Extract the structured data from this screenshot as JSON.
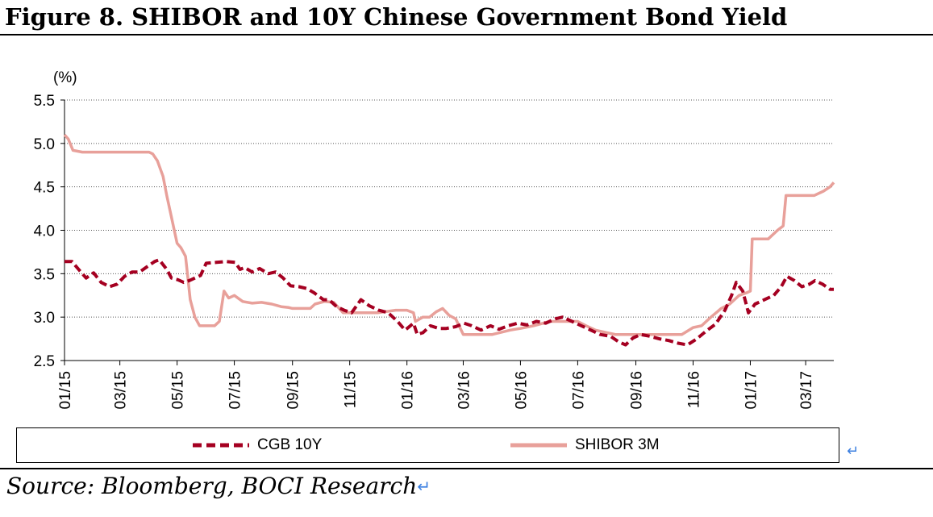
{
  "figure": {
    "title": "Figure 8. SHIBOR and 10Y Chinese Government Bond Yield",
    "source": "Source: Bloomberg, BOCI Research"
  },
  "chart_data": {
    "type": "line",
    "title": "Figure 8. SHIBOR and 10Y Chinese Government Bond Yield",
    "ylabel": "(%)",
    "xlabel": "",
    "ylim": [
      2.5,
      5.5
    ],
    "yticks": [
      2.5,
      3.0,
      3.5,
      4.0,
      4.5,
      5.0,
      5.5
    ],
    "ytick_labels": [
      "2.5",
      "3.0",
      "3.5",
      "4.0",
      "4.5",
      "5.0",
      "5.5"
    ],
    "xlim": [
      "2015-01-01",
      "2017-03-31"
    ],
    "xticks": [
      "2015-01-01",
      "2015-03-01",
      "2015-05-01",
      "2015-07-01",
      "2015-09-01",
      "2015-11-01",
      "2016-01-01",
      "2016-03-01",
      "2016-05-01",
      "2016-07-01",
      "2016-09-01",
      "2016-11-01",
      "2017-01-01",
      "2017-03-01"
    ],
    "xtick_labels": [
      "01/15",
      "03/15",
      "05/15",
      "07/15",
      "09/15",
      "11/15",
      "01/16",
      "03/16",
      "05/16",
      "07/16",
      "09/16",
      "11/16",
      "01/17",
      "03/17"
    ],
    "grid": "horizontal dotted",
    "legend": "bottom",
    "series": [
      {
        "name": "CGB 10Y",
        "style": "dashed",
        "color": "#A50021",
        "points": [
          [
            "2015-01-01",
            3.64
          ],
          [
            "2015-01-09",
            3.64
          ],
          [
            "2015-01-16",
            3.55
          ],
          [
            "2015-01-24",
            3.45
          ],
          [
            "2015-02-01",
            3.51
          ],
          [
            "2015-02-09",
            3.4
          ],
          [
            "2015-02-18",
            3.35
          ],
          [
            "2015-02-26",
            3.38
          ],
          [
            "2015-03-06",
            3.47
          ],
          [
            "2015-03-14",
            3.52
          ],
          [
            "2015-03-22",
            3.52
          ],
          [
            "2015-03-30",
            3.58
          ],
          [
            "2015-04-07",
            3.64
          ],
          [
            "2015-04-12",
            3.66
          ],
          [
            "2015-04-20",
            3.55
          ],
          [
            "2015-04-25",
            3.45
          ],
          [
            "2015-05-02",
            3.43
          ],
          [
            "2015-05-08",
            3.4
          ],
          [
            "2015-05-14",
            3.42
          ],
          [
            "2015-05-20",
            3.45
          ],
          [
            "2015-05-26",
            3.48
          ],
          [
            "2015-06-01",
            3.62
          ],
          [
            "2015-06-12",
            3.63
          ],
          [
            "2015-06-22",
            3.64
          ],
          [
            "2015-07-02",
            3.63
          ],
          [
            "2015-07-07",
            3.55
          ],
          [
            "2015-07-12",
            3.57
          ],
          [
            "2015-07-20",
            3.52
          ],
          [
            "2015-07-28",
            3.56
          ],
          [
            "2015-08-06",
            3.5
          ],
          [
            "2015-08-14",
            3.52
          ],
          [
            "2015-08-22",
            3.45
          ],
          [
            "2015-08-30",
            3.36
          ],
          [
            "2015-09-08",
            3.35
          ],
          [
            "2015-09-16",
            3.33
          ],
          [
            "2015-09-24",
            3.28
          ],
          [
            "2015-10-04",
            3.2
          ],
          [
            "2015-10-10",
            3.2
          ],
          [
            "2015-10-18",
            3.12
          ],
          [
            "2015-10-26",
            3.08
          ],
          [
            "2015-11-03",
            3.05
          ],
          [
            "2015-11-13",
            3.2
          ],
          [
            "2015-11-22",
            3.13
          ],
          [
            "2015-12-02",
            3.08
          ],
          [
            "2015-12-12",
            3.05
          ],
          [
            "2015-12-22",
            2.95
          ],
          [
            "2015-12-30",
            2.85
          ],
          [
            "2016-01-08",
            2.93
          ],
          [
            "2016-01-12",
            2.8
          ],
          [
            "2016-01-18",
            2.82
          ],
          [
            "2016-01-26",
            2.9
          ],
          [
            "2016-02-04",
            2.87
          ],
          [
            "2016-02-12",
            2.87
          ],
          [
            "2016-02-22",
            2.89
          ],
          [
            "2016-03-02",
            2.93
          ],
          [
            "2016-03-10",
            2.9
          ],
          [
            "2016-03-20",
            2.85
          ],
          [
            "2016-03-30",
            2.9
          ],
          [
            "2016-04-08",
            2.86
          ],
          [
            "2016-04-18",
            2.9
          ],
          [
            "2016-04-28",
            2.93
          ],
          [
            "2016-05-08",
            2.91
          ],
          [
            "2016-05-18",
            2.95
          ],
          [
            "2016-05-28",
            2.93
          ],
          [
            "2016-06-07",
            2.98
          ],
          [
            "2016-06-15",
            3.0
          ],
          [
            "2016-06-25",
            2.95
          ],
          [
            "2016-07-05",
            2.9
          ],
          [
            "2016-07-15",
            2.85
          ],
          [
            "2016-07-25",
            2.8
          ],
          [
            "2016-08-05",
            2.78
          ],
          [
            "2016-08-13",
            2.72
          ],
          [
            "2016-08-21",
            2.68
          ],
          [
            "2016-08-29",
            2.76
          ],
          [
            "2016-09-06",
            2.8
          ],
          [
            "2016-09-16",
            2.78
          ],
          [
            "2016-09-26",
            2.75
          ],
          [
            "2016-10-06",
            2.73
          ],
          [
            "2016-10-16",
            2.7
          ],
          [
            "2016-10-26",
            2.68
          ],
          [
            "2016-11-05",
            2.75
          ],
          [
            "2016-11-15",
            2.84
          ],
          [
            "2016-11-25",
            2.92
          ],
          [
            "2016-12-05",
            3.08
          ],
          [
            "2016-12-12",
            3.25
          ],
          [
            "2016-12-17",
            3.4
          ],
          [
            "2016-12-24",
            3.3
          ],
          [
            "2016-12-30",
            3.05
          ],
          [
            "2017-01-06",
            3.15
          ],
          [
            "2017-01-16",
            3.2
          ],
          [
            "2017-01-26",
            3.25
          ],
          [
            "2017-02-03",
            3.35
          ],
          [
            "2017-02-09",
            3.47
          ],
          [
            "2017-02-17",
            3.42
          ],
          [
            "2017-02-25",
            3.35
          ],
          [
            "2017-03-05",
            3.38
          ],
          [
            "2017-03-11",
            3.42
          ],
          [
            "2017-03-19",
            3.38
          ],
          [
            "2017-03-27",
            3.32
          ],
          [
            "2017-03-31",
            3.32
          ]
        ]
      },
      {
        "name": "SHIBOR 3M",
        "style": "solid",
        "color": "#E8A09A",
        "points": [
          [
            "2015-01-01",
            5.1
          ],
          [
            "2015-01-05",
            5.05
          ],
          [
            "2015-01-10",
            4.92
          ],
          [
            "2015-01-20",
            4.9
          ],
          [
            "2015-02-01",
            4.9
          ],
          [
            "2015-03-01",
            4.9
          ],
          [
            "2015-04-01",
            4.9
          ],
          [
            "2015-04-05",
            4.88
          ],
          [
            "2015-04-10",
            4.8
          ],
          [
            "2015-04-16",
            4.62
          ],
          [
            "2015-04-20",
            4.4
          ],
          [
            "2015-04-26",
            4.1
          ],
          [
            "2015-05-01",
            3.85
          ],
          [
            "2015-05-05",
            3.8
          ],
          [
            "2015-05-10",
            3.7
          ],
          [
            "2015-05-15",
            3.2
          ],
          [
            "2015-05-20",
            3.0
          ],
          [
            "2015-05-25",
            2.9
          ],
          [
            "2015-06-10",
            2.9
          ],
          [
            "2015-06-15",
            2.95
          ],
          [
            "2015-06-20",
            3.3
          ],
          [
            "2015-06-25",
            3.22
          ],
          [
            "2015-07-01",
            3.25
          ],
          [
            "2015-07-10",
            3.18
          ],
          [
            "2015-07-20",
            3.16
          ],
          [
            "2015-07-30",
            3.17
          ],
          [
            "2015-08-10",
            3.15
          ],
          [
            "2015-08-20",
            3.12
          ],
          [
            "2015-08-28",
            3.11
          ],
          [
            "2015-09-01",
            3.1
          ],
          [
            "2015-09-15",
            3.1
          ],
          [
            "2015-09-20",
            3.1
          ],
          [
            "2015-09-25",
            3.15
          ],
          [
            "2015-10-05",
            3.18
          ],
          [
            "2015-10-15",
            3.17
          ],
          [
            "2015-10-25",
            3.05
          ],
          [
            "2015-11-01",
            3.05
          ],
          [
            "2015-11-15",
            3.05
          ],
          [
            "2015-12-01",
            3.05
          ],
          [
            "2015-12-20",
            3.08
          ],
          [
            "2016-01-01",
            3.08
          ],
          [
            "2016-01-08",
            3.05
          ],
          [
            "2016-01-10",
            2.95
          ],
          [
            "2016-01-18",
            3.0
          ],
          [
            "2016-01-25",
            3.0
          ],
          [
            "2016-02-01",
            3.06
          ],
          [
            "2016-02-08",
            3.1
          ],
          [
            "2016-02-15",
            3.02
          ],
          [
            "2016-02-22",
            2.98
          ],
          [
            "2016-03-01",
            2.8
          ],
          [
            "2016-03-15",
            2.8
          ],
          [
            "2016-04-01",
            2.8
          ],
          [
            "2016-04-20",
            2.85
          ],
          [
            "2016-05-01",
            2.87
          ],
          [
            "2016-05-15",
            2.9
          ],
          [
            "2016-06-01",
            2.95
          ],
          [
            "2016-06-15",
            2.95
          ],
          [
            "2016-07-01",
            2.95
          ],
          [
            "2016-07-10",
            2.9
          ],
          [
            "2016-07-20",
            2.85
          ],
          [
            "2016-08-01",
            2.82
          ],
          [
            "2016-08-10",
            2.8
          ],
          [
            "2016-09-01",
            2.8
          ],
          [
            "2016-10-01",
            2.8
          ],
          [
            "2016-10-20",
            2.8
          ],
          [
            "2016-11-01",
            2.88
          ],
          [
            "2016-11-10",
            2.9
          ],
          [
            "2016-11-20",
            3.0
          ],
          [
            "2016-12-01",
            3.1
          ],
          [
            "2016-12-10",
            3.15
          ],
          [
            "2016-12-20",
            3.25
          ],
          [
            "2016-12-28",
            3.28
          ],
          [
            "2017-01-01",
            3.3
          ],
          [
            "2017-01-03",
            3.9
          ],
          [
            "2017-01-20",
            3.9
          ],
          [
            "2017-01-30",
            4.0
          ],
          [
            "2017-02-05",
            4.05
          ],
          [
            "2017-02-08",
            4.4
          ],
          [
            "2017-03-10",
            4.4
          ],
          [
            "2017-03-20",
            4.45
          ],
          [
            "2017-03-27",
            4.5
          ],
          [
            "2017-03-31",
            4.55
          ]
        ]
      }
    ]
  }
}
